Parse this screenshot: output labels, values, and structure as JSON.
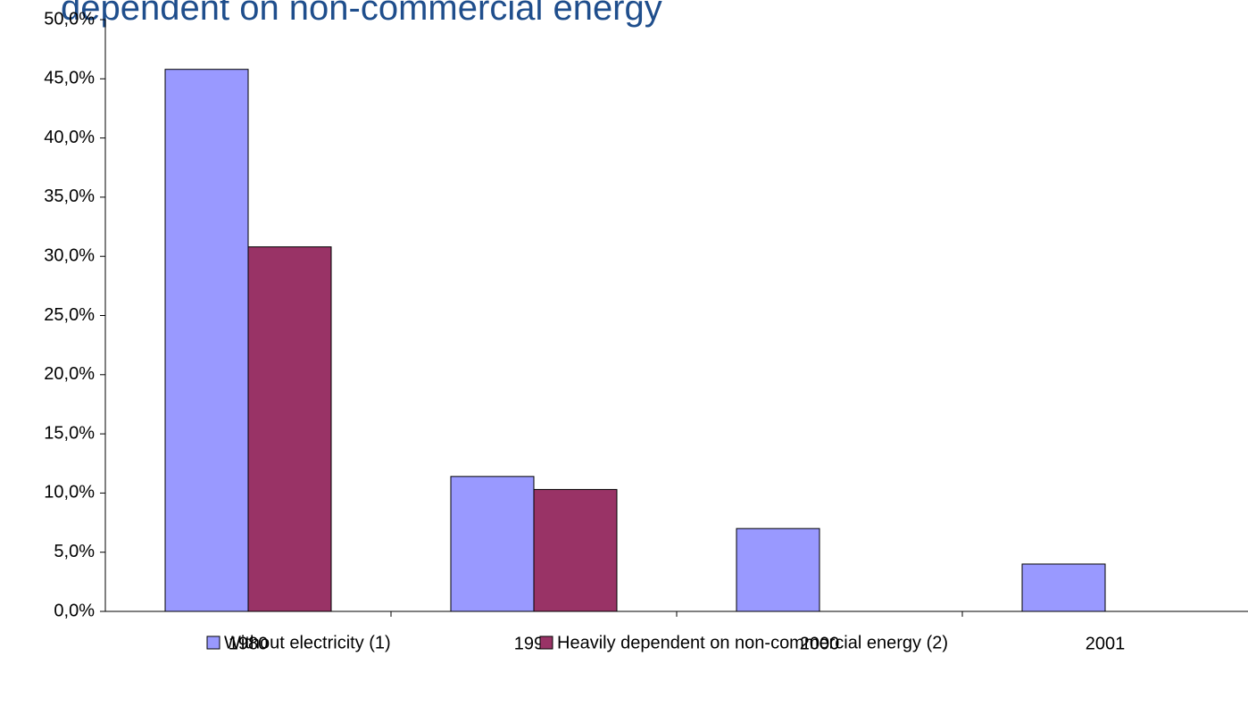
{
  "chart_data": {
    "type": "bar",
    "title": "dependent on non-commercial energy",
    "categories": [
      "1980",
      "1991",
      "2000",
      "2001"
    ],
    "series": [
      {
        "name": "Without electricity (1)",
        "color": "#9999ff",
        "values": [
          45.8,
          11.4,
          7.0,
          4.0
        ]
      },
      {
        "name": "Heavily dependent on non-commercial energy (2)",
        "color": "#993366",
        "values": [
          30.8,
          10.3,
          null,
          null
        ]
      }
    ],
    "ylim": [
      0,
      50
    ],
    "yticks": [
      {
        "value": 0,
        "label": "0,0%"
      },
      {
        "value": 5,
        "label": "5,0%"
      },
      {
        "value": 10,
        "label": "10,0%"
      },
      {
        "value": 15,
        "label": "15,0%"
      },
      {
        "value": 20,
        "label": "20,0%"
      },
      {
        "value": 25,
        "label": "25,0%"
      },
      {
        "value": 30,
        "label": "30,0%"
      },
      {
        "value": 35,
        "label": "35,0%"
      },
      {
        "value": 40,
        "label": "40,0%"
      },
      {
        "value": 45,
        "label": "45,0%"
      },
      {
        "value": 50,
        "label": "50,0%"
      }
    ],
    "grid": false,
    "legend": "bottom"
  }
}
